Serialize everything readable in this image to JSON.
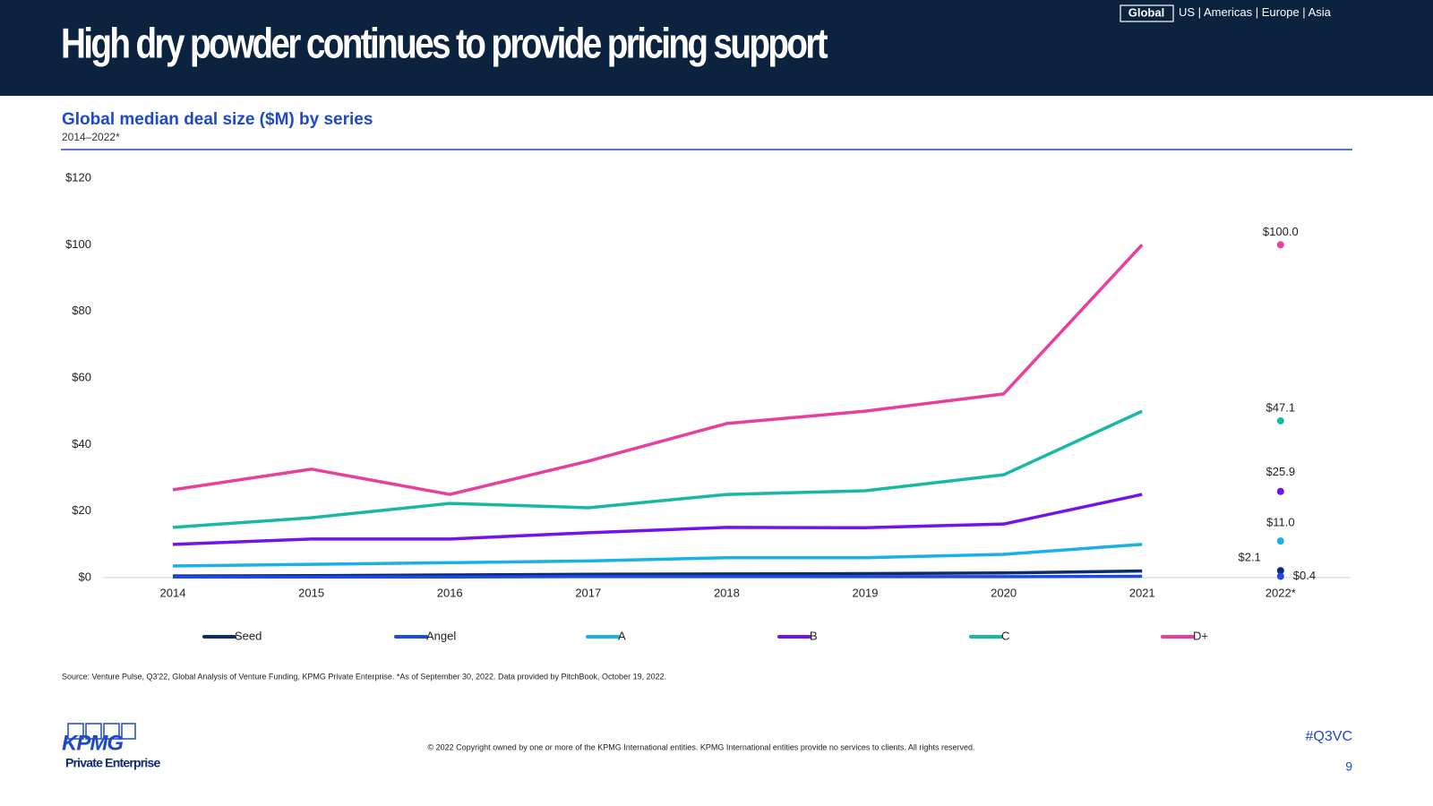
{
  "header": {
    "title": "High dry powder continues to provide pricing support",
    "nav": [
      "Global",
      "US",
      "Americas",
      "Europe",
      "Asia"
    ]
  },
  "chart_data": {
    "type": "line",
    "title": "Global median deal size ($M) by series",
    "subtitle": "2014–2022*",
    "categories": [
      "2014",
      "2015",
      "2016",
      "2017",
      "2018",
      "2019",
      "2020",
      "2021",
      "2022*"
    ],
    "last_point_separate": true,
    "ylim": [
      0,
      120
    ],
    "yticks": [
      {
        "value": 0,
        "label": "$0"
      },
      {
        "value": 20,
        "label": "$20"
      },
      {
        "value": 40,
        "label": "$40"
      },
      {
        "value": 60,
        "label": "$60"
      },
      {
        "value": 80,
        "label": "$80"
      },
      {
        "value": 100,
        "label": "$100"
      },
      {
        "value": 120,
        "label": "$120"
      }
    ],
    "grid": false,
    "legend": "bottom",
    "series": [
      {
        "name": "Seed",
        "color": "#0c2d6b",
        "values": [
          0.5,
          0.6,
          0.8,
          1.0,
          1.1,
          1.2,
          1.4,
          2.0,
          2.1
        ],
        "value_labels": [
          null,
          null,
          null,
          null,
          null,
          null,
          null,
          null,
          "$2.1"
        ]
      },
      {
        "name": "Angel",
        "color": "#1e49e2",
        "values": [
          0.2,
          0.2,
          0.2,
          0.3,
          0.3,
          0.3,
          0.3,
          0.4,
          0.4
        ],
        "value_labels": [
          null,
          null,
          null,
          null,
          null,
          null,
          null,
          null,
          "$0.4"
        ]
      },
      {
        "name": "A",
        "color": "#1ab0e8",
        "values": [
          3.5,
          4.0,
          4.5,
          5.0,
          6.0,
          6.0,
          7.0,
          10.0,
          11.0
        ],
        "value_labels": [
          null,
          null,
          null,
          null,
          null,
          null,
          null,
          null,
          "$11.0"
        ]
      },
      {
        "name": "B",
        "color": "#7213ea",
        "values": [
          10.0,
          11.6,
          11.6,
          13.5,
          15.1,
          15.0,
          16.1,
          25.0,
          25.9
        ],
        "value_labels": [
          null,
          null,
          null,
          null,
          null,
          null,
          null,
          null,
          "$25.9"
        ]
      },
      {
        "name": "C",
        "color": "#17b8a5",
        "values": [
          15.1,
          18.0,
          22.3,
          21.0,
          25.0,
          26.1,
          30.9,
          50.0,
          47.1
        ],
        "value_labels": [
          null,
          null,
          null,
          null,
          null,
          null,
          null,
          null,
          "$47.1"
        ]
      },
      {
        "name": "D+",
        "color": "#e83e9e",
        "values": [
          26.4,
          32.6,
          25.0,
          35.0,
          46.3,
          50.0,
          55.2,
          100.0,
          100.0
        ],
        "value_labels": [
          null,
          null,
          null,
          null,
          null,
          null,
          null,
          null,
          "$100.0"
        ]
      }
    ]
  },
  "source": "Source: Venture Pulse, Q3'22, Global Analysis of Venture Funding, KPMG Private Enterprise. *As of September 30, 2022. Data provided by PitchBook, October 19, 2022.",
  "footer": {
    "logo": "KPMG",
    "logo_subtitle": "Private Enterprise",
    "copyright": "© 2022 Copyright owned by one or more of the KPMG International entities. KPMG International entities provide no services to clients. All rights reserved.",
    "hashtag": "#Q3VC",
    "page": "9"
  }
}
